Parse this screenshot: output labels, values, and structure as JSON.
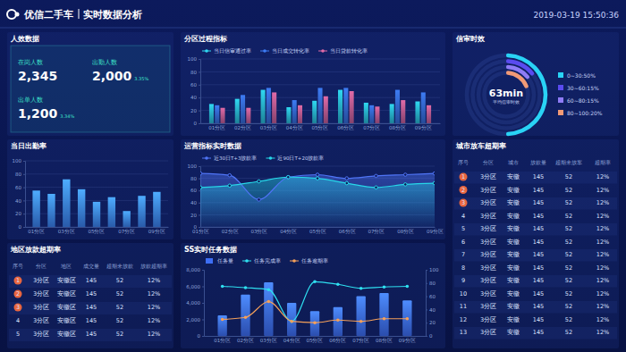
{
  "header": {
    "logo": "优信二手车",
    "title": "实时数据分析",
    "datetime": "2019-03-19 15:50:36"
  },
  "kpi": {
    "title": "人效数据",
    "items": [
      {
        "label": "在岗人数",
        "value": "2,345"
      },
      {
        "label": "出勤人数",
        "value": "2,000",
        "change": "3.35%"
      },
      {
        "label": "出单人数",
        "value": "1,200",
        "change": "3.34%"
      }
    ]
  },
  "chart_data": [
    {
      "type": "bar",
      "title": "分区过程指标",
      "categories": [
        "01分区",
        "02分区",
        "03分区",
        "04分区",
        "05分区",
        "06分区",
        "07分区",
        "08分区",
        "09分区"
      ],
      "series": [
        {
          "name": "当日信审通过率",
          "color": "#2fd9f2",
          "values": [
            30,
            38,
            52,
            25,
            35,
            52,
            32,
            30,
            34
          ]
        },
        {
          "name": "当日成交转化率",
          "color": "#3d7cf5",
          "values": [
            28,
            44,
            55,
            36,
            55,
            55,
            28,
            52,
            48
          ]
        },
        {
          "name": "当日贷款转化率",
          "color": "#e26ba8",
          "values": [
            24,
            24,
            48,
            28,
            42,
            50,
            26,
            36,
            28
          ]
        }
      ],
      "ylim": [
        0,
        100
      ],
      "yticks": [
        0,
        20,
        40,
        60,
        80,
        100
      ],
      "grid": true,
      "legend": "top"
    },
    {
      "type": "radial",
      "title": "信审时效",
      "categories": [
        "0~30:50%",
        "30~60:15%",
        "60~80:15%",
        "80~100:20%"
      ],
      "values": [
        50,
        15,
        15,
        20
      ],
      "colors": [
        "#29d3f5",
        "#5a4bf0",
        "#8f7cf7",
        "#f29a76"
      ],
      "center_label": "63min",
      "center_sublabel": "平均信审时效",
      "legend": "right"
    },
    {
      "type": "bar",
      "title": "当日出勤率",
      "categories": [
        "01分区",
        null,
        "03分区",
        null,
        "05分区",
        null,
        "07分区",
        null,
        "09分区"
      ],
      "values": [
        55,
        50,
        72,
        57,
        38,
        45,
        24,
        47,
        53
      ],
      "color": "#3f8cff",
      "ylim": [
        0,
        100
      ],
      "yticks": [
        0,
        20,
        40,
        60,
        80,
        100
      ],
      "grid": true
    },
    {
      "type": "area",
      "title": "运营指标实时数据",
      "categories": [
        "01分区",
        "02分区",
        "03分区",
        "04分区",
        "05分区",
        "06分区",
        "07分区",
        "08分区",
        "09分区"
      ],
      "series": [
        {
          "name": "近30日T+3放款率",
          "color": "#4f74f5",
          "values": [
            88,
            85,
            45,
            82,
            86,
            80,
            84,
            86,
            88
          ]
        },
        {
          "name": "近90日T+20放款率",
          "color": "#27d6e8",
          "values": [
            65,
            68,
            75,
            82,
            80,
            72,
            65,
            70,
            72
          ]
        }
      ],
      "ylim": [
        0,
        100
      ],
      "yticks": [
        0,
        20,
        40,
        60,
        80,
        100
      ],
      "grid": true,
      "legend": "top",
      "marker": "circle"
    },
    {
      "type": "bar",
      "title": "SS实时任务数据",
      "categories": [
        "01分区",
        "02分区",
        "03分区",
        "04分区",
        "05分区",
        "06分区",
        "07分区",
        "08分区",
        "09分区"
      ],
      "series": [
        {
          "name": "任务量",
          "type": "bar",
          "color": "#3d6ef5",
          "values": [
            2500,
            5000,
            6500,
            4000,
            3000,
            3500,
            4800,
            5200,
            4300
          ]
        },
        {
          "name": "任务完成率",
          "type": "line",
          "axis": "y2",
          "marker": "circle",
          "color": "#2fe0f0",
          "values": [
            75,
            73,
            70,
            22,
            82,
            78,
            72,
            74,
            75
          ]
        },
        {
          "name": "任务逾期率",
          "type": "line",
          "axis": "y2",
          "marker": "circle",
          "color": "#f5a05a",
          "values": [
            25,
            28,
            52,
            22,
            20,
            24,
            22,
            26,
            26
          ]
        }
      ],
      "ylim": [
        0,
        8000
      ],
      "yticks": [
        0,
        {
          "value": 2000,
          "label": "2,000"
        },
        {
          "value": 4000,
          "label": "4,000"
        },
        {
          "value": 6000,
          "label": "6,000"
        },
        {
          "value": 8000,
          "label": "8,000"
        }
      ],
      "y2lim": [
        0,
        100
      ],
      "y2ticks": [
        0,
        20,
        40,
        60,
        80,
        100
      ],
      "legend": "top"
    }
  ],
  "tables": [
    {
      "title": "城市放车超期率",
      "columns": [
        "序号",
        "分区",
        "城市",
        "放款量",
        "超期未放车",
        "超期率"
      ],
      "rows": [
        [
          1,
          "3分区",
          "安徽",
          145,
          52,
          "12%"
        ],
        [
          2,
          "3分区",
          "安徽",
          145,
          52,
          "12%"
        ],
        [
          3,
          "3分区",
          "安徽",
          145,
          52,
          "12%"
        ],
        [
          4,
          "3分区",
          "安徽",
          145,
          52,
          "12%"
        ],
        [
          5,
          "3分区",
          "安徽",
          145,
          52,
          "12%"
        ],
        [
          6,
          "3分区",
          "安徽",
          145,
          52,
          "12%"
        ],
        [
          7,
          "3分区",
          "安徽",
          145,
          52,
          "12%"
        ],
        [
          8,
          "3分区",
          "安徽",
          145,
          52,
          "12%"
        ],
        [
          9,
          "3分区",
          "安徽",
          145,
          52,
          "12%"
        ],
        [
          10,
          "3分区",
          "安徽",
          145,
          52,
          "12%"
        ],
        [
          11,
          "3分区",
          "安徽",
          145,
          52,
          "12%"
        ],
        [
          12,
          "3分区",
          "安徽",
          145,
          52,
          "12%"
        ],
        [
          13,
          "3分区",
          "安徽",
          145,
          52,
          "12%"
        ]
      ]
    },
    {
      "title": "地区放款超期率",
      "columns": [
        "序号",
        "分区",
        "地区",
        "成交量",
        "超期未放款",
        "放款超期率"
      ],
      "rows": [
        [
          1,
          "3分区",
          "安徽区",
          145,
          52,
          "12%"
        ],
        [
          2,
          "3分区",
          "安徽区",
          145,
          52,
          "12%"
        ],
        [
          3,
          "3分区",
          "安徽区",
          145,
          52,
          "12%"
        ],
        [
          4,
          "3分区",
          "安徽区",
          145,
          52,
          "12%"
        ],
        [
          5,
          "3分区",
          "安徽区",
          145,
          52,
          "12%"
        ]
      ]
    }
  ]
}
